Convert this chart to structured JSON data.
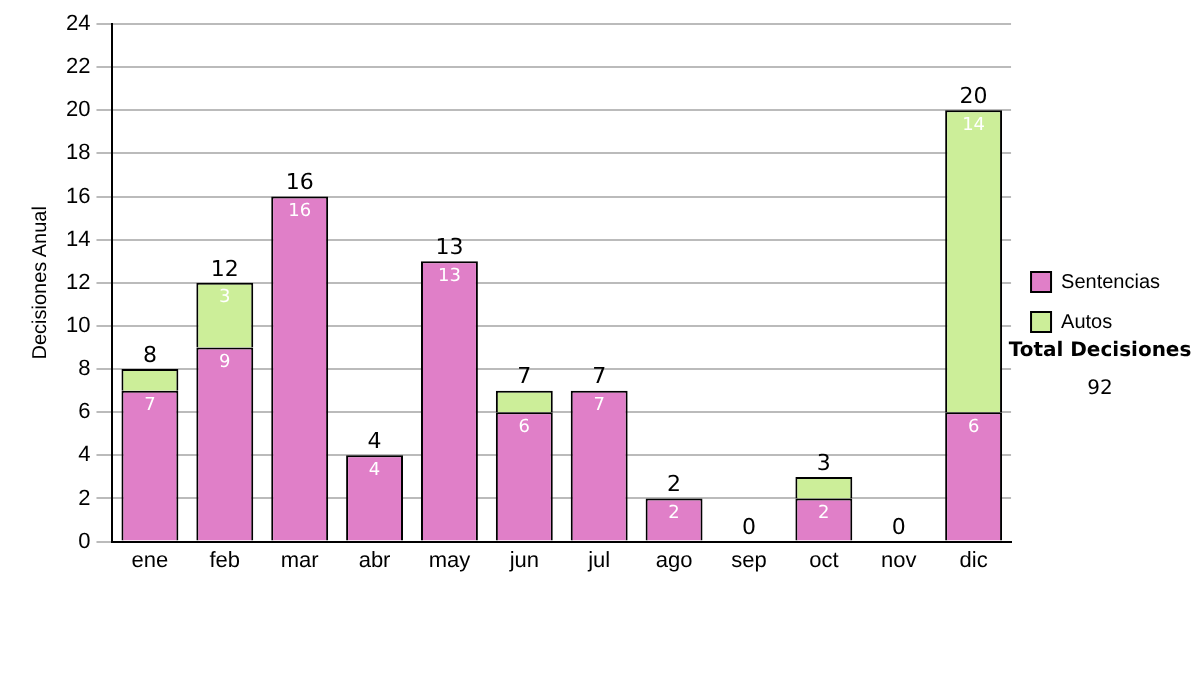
{
  "chart_data": {
    "type": "bar",
    "stacked": true,
    "ylabel": "Decisiones Anual",
    "categories": [
      "ene",
      "feb",
      "mar",
      "abr",
      "may",
      "jun",
      "jul",
      "ago",
      "sep",
      "oct",
      "nov",
      "dic"
    ],
    "series": [
      {
        "name": "Sentencias",
        "color": "#e07fc8",
        "values": [
          7,
          9,
          16,
          4,
          13,
          6,
          7,
          2,
          0,
          2,
          0,
          6
        ],
        "value_labels": [
          "7",
          "9",
          "16",
          "4",
          "13",
          "6",
          "7",
          "2",
          null,
          "2",
          null,
          "6"
        ]
      },
      {
        "name": "Autos",
        "color": "#ccee99",
        "values": [
          1,
          3,
          0,
          0,
          0,
          1,
          0,
          0,
          0,
          1,
          0,
          14
        ],
        "value_labels": [
          null,
          "3",
          null,
          null,
          null,
          null,
          null,
          null,
          null,
          null,
          null,
          "14"
        ]
      }
    ],
    "totals": [
      "8",
      "12",
      "16",
      "4",
      "13",
      "7",
      "7",
      "2",
      "0",
      "3",
      "0",
      "20"
    ],
    "ylim": [
      0,
      24
    ],
    "yticks": [
      0,
      2,
      4,
      6,
      8,
      10,
      12,
      14,
      16,
      18,
      20,
      22,
      24
    ],
    "grid": "y",
    "legend": "right",
    "annotations": [
      "Total Decisiones",
      "92"
    ]
  }
}
